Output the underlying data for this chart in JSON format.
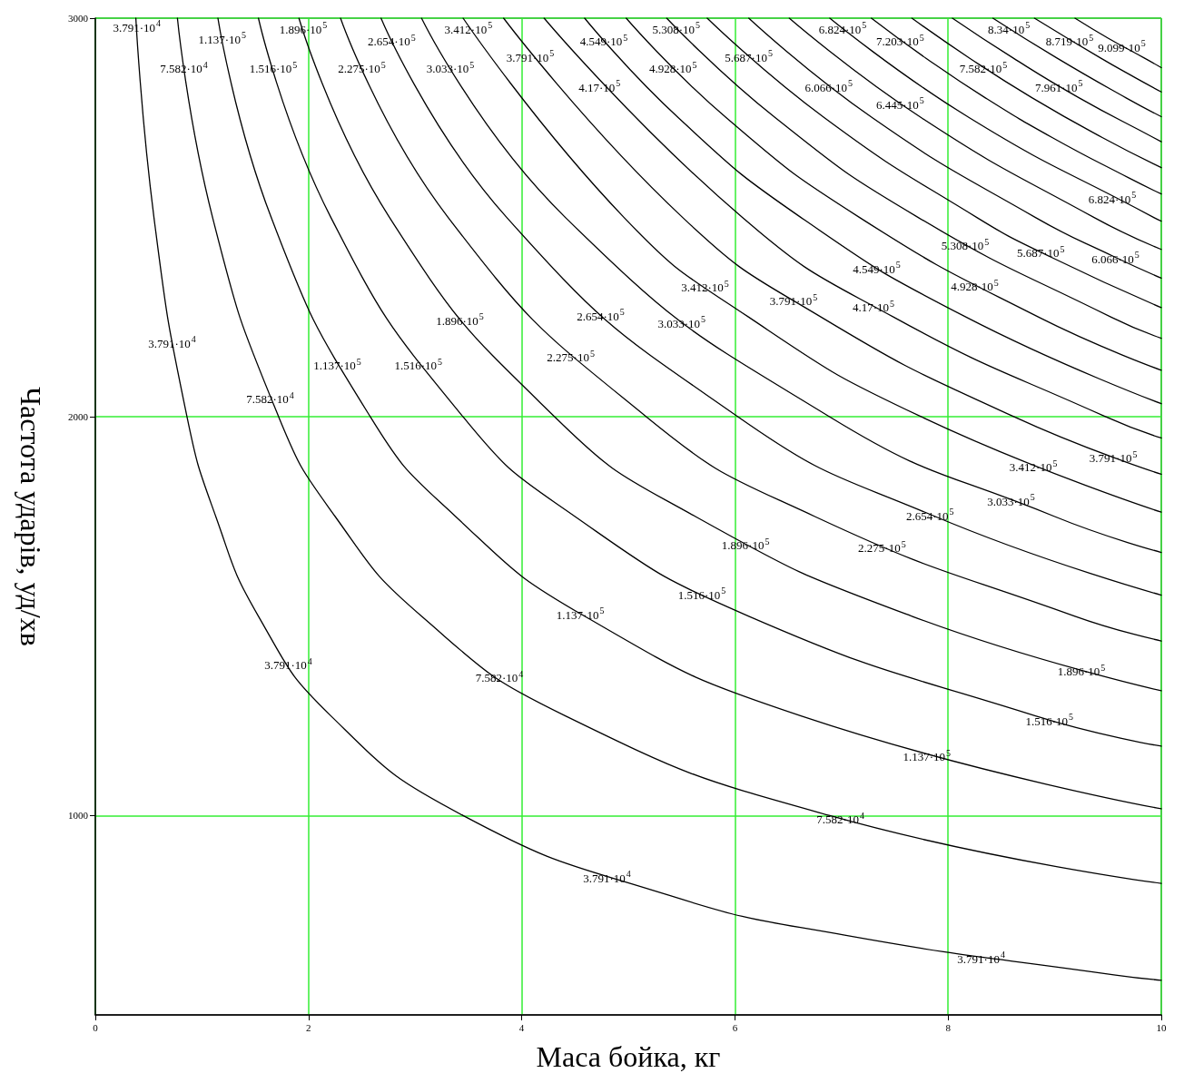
{
  "chart_data": {
    "type": "line",
    "xlabel": "Маса бойка, кг",
    "ylabel": "Частота ударів, уд/хв",
    "xlim": [
      0,
      10
    ],
    "xticks": [
      0,
      2,
      4,
      6,
      8,
      10
    ],
    "ylim": [
      500,
      3000
    ],
    "yticks": [
      1000,
      2000,
      3000
    ],
    "grid": true,
    "marker": "none",
    "line_style": "solid",
    "series": [
      {
        "color": "#000000",
        "x": [
          0.38,
          0.55,
          0.86,
          1.13,
          1.53,
          2.21,
          3.45,
          5.38,
          7.03,
          9.57,
          10
        ],
        "values": [
          3000,
          2500,
          2000,
          1750,
          1500,
          1250,
          1000,
          800,
          700,
          600,
          587
        ]
      },
      {
        "color": "#000000",
        "x": [
          0.77,
          1.1,
          1.72,
          2.25,
          3.06,
          4.41,
          6.89,
          10
        ],
        "values": [
          3000,
          2500,
          2000,
          1750,
          1500,
          1250,
          1000,
          830
        ]
      },
      {
        "color": "#000000",
        "x": [
          1.15,
          1.65,
          2.58,
          3.38,
          4.59,
          6.62,
          10
        ],
        "values": [
          3000,
          2500,
          2000,
          1750,
          1500,
          1250,
          1017
        ]
      },
      {
        "color": "#000000",
        "x": [
          1.53,
          2.21,
          3.45,
          4.5,
          6.13,
          8.82,
          10
        ],
        "values": [
          3000,
          2500,
          2000,
          1750,
          1500,
          1250,
          1174
        ]
      },
      {
        "color": "#000000",
        "x": [
          1.91,
          2.76,
          4.31,
          5.63,
          7.66,
          10
        ],
        "values": [
          3000,
          2500,
          2000,
          1750,
          1500,
          1313
        ]
      },
      {
        "color": "#000000",
        "x": [
          2.3,
          3.31,
          5.17,
          6.75,
          9.19,
          10
        ],
        "values": [
          3000,
          2500,
          2000,
          1750,
          1500,
          1438
        ]
      },
      {
        "color": "#000000",
        "x": [
          2.68,
          3.86,
          6.03,
          7.88,
          10
        ],
        "values": [
          3000,
          2500,
          2000,
          1750,
          1553
        ]
      },
      {
        "color": "#000000",
        "x": [
          3.06,
          4.41,
          6.89,
          9,
          10
        ],
        "values": [
          3000,
          2500,
          2000,
          1750,
          1660
        ]
      },
      {
        "color": "#000000",
        "x": [
          3.45,
          4.96,
          6.13,
          7.75,
          10
        ],
        "values": [
          3000,
          2500,
          2250,
          2000,
          1761
        ]
      },
      {
        "color": "#000000",
        "x": [
          3.83,
          5.51,
          6.81,
          8.62,
          10
        ],
        "values": [
          3000,
          2500,
          2250,
          2000,
          1856
        ]
      },
      {
        "color": "#000000",
        "x": [
          4.21,
          6.07,
          7.49,
          9.48,
          10
        ],
        "values": [
          3000,
          2500,
          2250,
          2000,
          1947
        ]
      },
      {
        "color": "#000000",
        "x": [
          4.59,
          5.47,
          6.62,
          8.17,
          10
        ],
        "values": [
          3000,
          2750,
          2500,
          2250,
          2033
        ]
      },
      {
        "color": "#000000",
        "x": [
          4.98,
          5.92,
          7.17,
          8.85,
          10
        ],
        "values": [
          3000,
          2750,
          2500,
          2250,
          2117
        ]
      },
      {
        "color": "#000000",
        "x": [
          5.36,
          6.38,
          7.72,
          9.53,
          10
        ],
        "values": [
          3000,
          2750,
          2500,
          2250,
          2197
        ]
      },
      {
        "color": "#000000",
        "x": [
          5.74,
          6.84,
          8.27,
          8.97,
          10
        ],
        "values": [
          3000,
          2750,
          2500,
          2400,
          2274
        ]
      },
      {
        "color": "#000000",
        "x": [
          6.13,
          7.29,
          8.82,
          9.57,
          10
        ],
        "values": [
          3000,
          2750,
          2500,
          2400,
          2348
        ]
      },
      {
        "color": "#000000",
        "x": [
          6.51,
          7.75,
          9.37,
          10
        ],
        "values": [
          3000,
          2750,
          2500,
          2420
        ]
      },
      {
        "color": "#000000",
        "x": [
          6.89,
          8.2,
          9.93,
          10
        ],
        "values": [
          3000,
          2750,
          2500,
          2491
        ]
      },
      {
        "color": "#000000",
        "x": [
          7.28,
          7.79,
          8.35,
          8.98,
          9.69,
          10
        ],
        "values": [
          3000,
          2900,
          2800,
          2700,
          2600,
          2559
        ]
      },
      {
        "color": "#000000",
        "x": [
          7.66,
          8.2,
          8.79,
          9.45,
          10
        ],
        "values": [
          3000,
          2900,
          2800,
          2700,
          2625
        ]
      },
      {
        "color": "#000000",
        "x": [
          8.04,
          8.61,
          9.23,
          9.93,
          10
        ],
        "values": [
          3000,
          2900,
          2800,
          2700,
          2690
        ]
      },
      {
        "color": "#000000",
        "x": [
          8.42,
          9.02,
          9.67,
          10
        ],
        "values": [
          3000,
          2900,
          2800,
          2753
        ]
      },
      {
        "color": "#000000",
        "x": [
          8.81,
          9.43,
          9.76,
          10
        ],
        "values": [
          3000,
          2900,
          2850,
          2815
        ]
      },
      {
        "color": "#000000",
        "x": [
          9.19,
          9.5,
          9.84,
          10
        ],
        "values": [
          3000,
          2950,
          2900,
          2876
        ]
      }
    ],
    "annotations": [
      {
        "text": "3.791·10$^{4}$",
        "x": 0.39,
        "y": 2980
      },
      {
        "text": "1.137·10$^{5}$",
        "x": 1.19,
        "y": 2950
      },
      {
        "text": "1.896·10$^{5}$",
        "x": 1.95,
        "y": 2975
      },
      {
        "text": "3.412·10$^{5}$",
        "x": 3.5,
        "y": 2975
      },
      {
        "text": "5.308·10$^{5}$",
        "x": 5.45,
        "y": 2975
      },
      {
        "text": "6.824·10$^{5}$",
        "x": 7.01,
        "y": 2975
      },
      {
        "text": "8.34·10$^{5}$",
        "x": 8.57,
        "y": 2975
      },
      {
        "text": "2.654·10$^{5}$",
        "x": 2.78,
        "y": 2945
      },
      {
        "text": "4.549·10$^{5}$",
        "x": 4.77,
        "y": 2945
      },
      {
        "text": "7.203·10$^{5}$",
        "x": 7.55,
        "y": 2945
      },
      {
        "text": "8.719·10$^{5}$",
        "x": 9.14,
        "y": 2945
      },
      {
        "text": "9.099·10$^{5}$",
        "x": 9.63,
        "y": 2930
      },
      {
        "text": "3.791·10$^{5}$",
        "x": 4.08,
        "y": 2905
      },
      {
        "text": "5.687·10$^{5}$",
        "x": 6.13,
        "y": 2905
      },
      {
        "text": "7.582·10$^{4}$",
        "x": 0.83,
        "y": 2876
      },
      {
        "text": "1.516·10$^{5}$",
        "x": 1.67,
        "y": 2876
      },
      {
        "text": "2.275·10$^{5}$",
        "x": 2.5,
        "y": 2876
      },
      {
        "text": "3.033·10$^{5}$",
        "x": 3.33,
        "y": 2876
      },
      {
        "text": "4.928·10$^{5}$",
        "x": 5.42,
        "y": 2876
      },
      {
        "text": "7.582·10$^{5}$",
        "x": 8.33,
        "y": 2876
      },
      {
        "text": "4.17·10$^{5}$",
        "x": 4.73,
        "y": 2830
      },
      {
        "text": "6.066·10$^{5}$",
        "x": 6.88,
        "y": 2830
      },
      {
        "text": "7.961·10$^{5}$",
        "x": 9.04,
        "y": 2830
      },
      {
        "text": "6.445·10$^{5}$",
        "x": 7.55,
        "y": 2786
      },
      {
        "text": "6.824·10$^{5}$",
        "x": 9.54,
        "y": 2550
      },
      {
        "text": "5.308·10$^{5}$",
        "x": 8.16,
        "y": 2432
      },
      {
        "text": "5.687·10$^{5}$",
        "x": 8.87,
        "y": 2414
      },
      {
        "text": "6.066·10$^{5}$",
        "x": 9.57,
        "y": 2400
      },
      {
        "text": "4.549·10$^{5}$",
        "x": 7.33,
        "y": 2375
      },
      {
        "text": "4.928·10$^{5}$",
        "x": 8.25,
        "y": 2330
      },
      {
        "text": "3.412·10$^{5}$",
        "x": 5.72,
        "y": 2328
      },
      {
        "text": "3.791·10$^{5}$",
        "x": 6.55,
        "y": 2294
      },
      {
        "text": "4.17·10$^{5}$",
        "x": 7.3,
        "y": 2278
      },
      {
        "text": "2.654·10$^{5}$",
        "x": 4.74,
        "y": 2256
      },
      {
        "text": "3.033·10$^{5}$",
        "x": 5.5,
        "y": 2238
      },
      {
        "text": "1.896·10$^{5}$",
        "x": 3.42,
        "y": 2245
      },
      {
        "text": "2.275·10$^{5}$",
        "x": 4.46,
        "y": 2152
      },
      {
        "text": "3.791·10$^{4}$",
        "x": 0.72,
        "y": 2188
      },
      {
        "text": "1.137·10$^{5}$",
        "x": 2.27,
        "y": 2132
      },
      {
        "text": "1.516·10$^{5}$",
        "x": 3.03,
        "y": 2132
      },
      {
        "text": "7.582·10$^{4}$",
        "x": 1.64,
        "y": 2048
      },
      {
        "text": "3.412·10$^{5}$",
        "x": 8.8,
        "y": 1877
      },
      {
        "text": "3.791·10$^{5}$",
        "x": 9.55,
        "y": 1900
      },
      {
        "text": "2.654·10$^{5}$",
        "x": 7.83,
        "y": 1755
      },
      {
        "text": "3.033·10$^{5}$",
        "x": 8.59,
        "y": 1791
      },
      {
        "text": "1.896·10$^{5}$",
        "x": 6.1,
        "y": 1681
      },
      {
        "text": "2.275·10$^{5}$",
        "x": 7.38,
        "y": 1674
      },
      {
        "text": "1.516·10$^{5}$",
        "x": 5.69,
        "y": 1557
      },
      {
        "text": "1.137·10$^{5}$",
        "x": 4.55,
        "y": 1507
      },
      {
        "text": "3.791·10$^{4}$",
        "x": 1.81,
        "y": 1381
      },
      {
        "text": "7.582·10$^{4}$",
        "x": 3.79,
        "y": 1349
      },
      {
        "text": "1.896·10$^{5}$",
        "x": 9.25,
        "y": 1365
      },
      {
        "text": "1.516·10$^{5}$",
        "x": 8.95,
        "y": 1241
      },
      {
        "text": "1.137·10$^{5}$",
        "x": 7.8,
        "y": 1151
      },
      {
        "text": "7.582·10$^{4}$",
        "x": 6.99,
        "y": 993
      },
      {
        "text": "3.791·10$^{4}$",
        "x": 4.8,
        "y": 847
      },
      {
        "text": "3.791·10$^{4}$",
        "x": 8.31,
        "y": 644
      }
    ]
  }
}
